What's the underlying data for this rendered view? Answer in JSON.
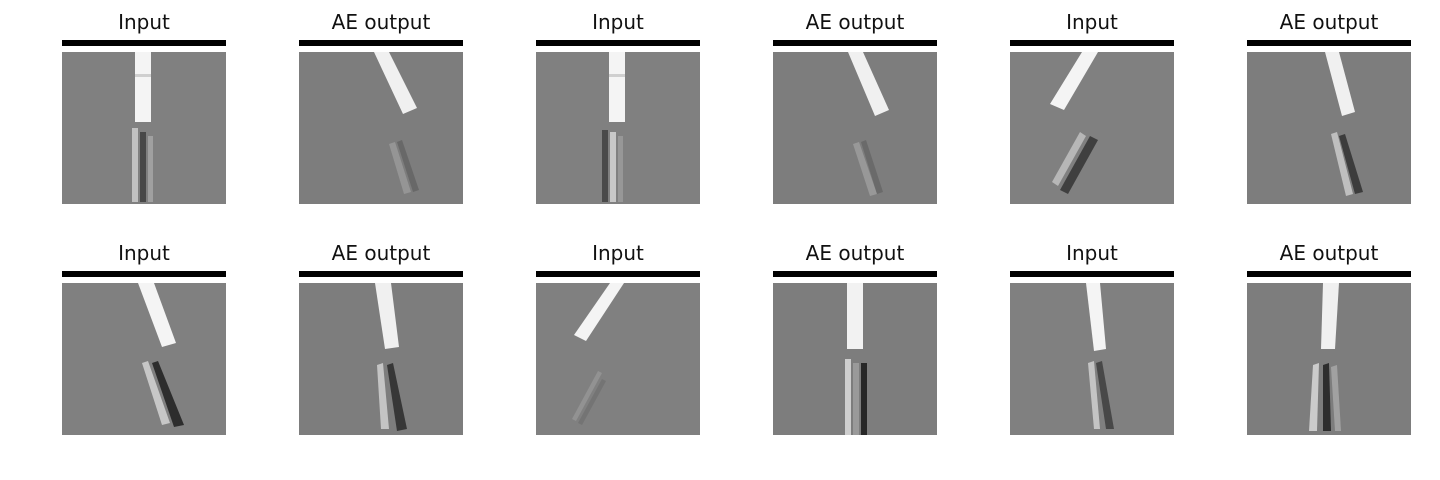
{
  "figure": {
    "panels": [
      {
        "title": "Input"
      },
      {
        "title": "AE output"
      },
      {
        "title": "Input"
      },
      {
        "title": "AE output"
      },
      {
        "title": "Input"
      },
      {
        "title": "AE output"
      },
      {
        "title": "Input"
      },
      {
        "title": "AE output"
      },
      {
        "title": "Input"
      },
      {
        "title": "AE output"
      },
      {
        "title": "Input"
      },
      {
        "title": "AE output"
      }
    ]
  }
}
